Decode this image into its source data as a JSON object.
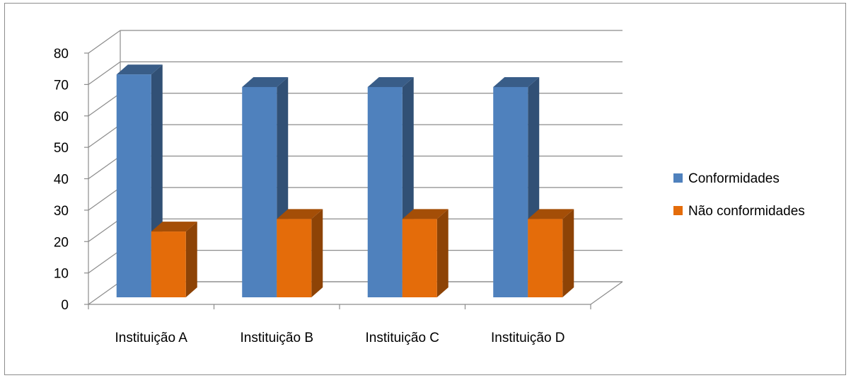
{
  "chart_data": {
    "type": "bar",
    "title": "",
    "xlabel": "",
    "ylabel": "",
    "ylim": [
      0,
      80
    ],
    "yticks": [
      0,
      10,
      20,
      30,
      40,
      50,
      60,
      70,
      80
    ],
    "grid": true,
    "legend_position": "right",
    "categories": [
      "Instituição A",
      "Instituição B",
      "Instituição C",
      "Instituição D"
    ],
    "series": [
      {
        "name": "Conformidades",
        "color": "#4f81bd",
        "values": [
          75,
          71,
          71,
          71
        ]
      },
      {
        "name": "Não conformidades",
        "color": "#e46c0a",
        "values": [
          25,
          29,
          29,
          29
        ]
      }
    ]
  }
}
